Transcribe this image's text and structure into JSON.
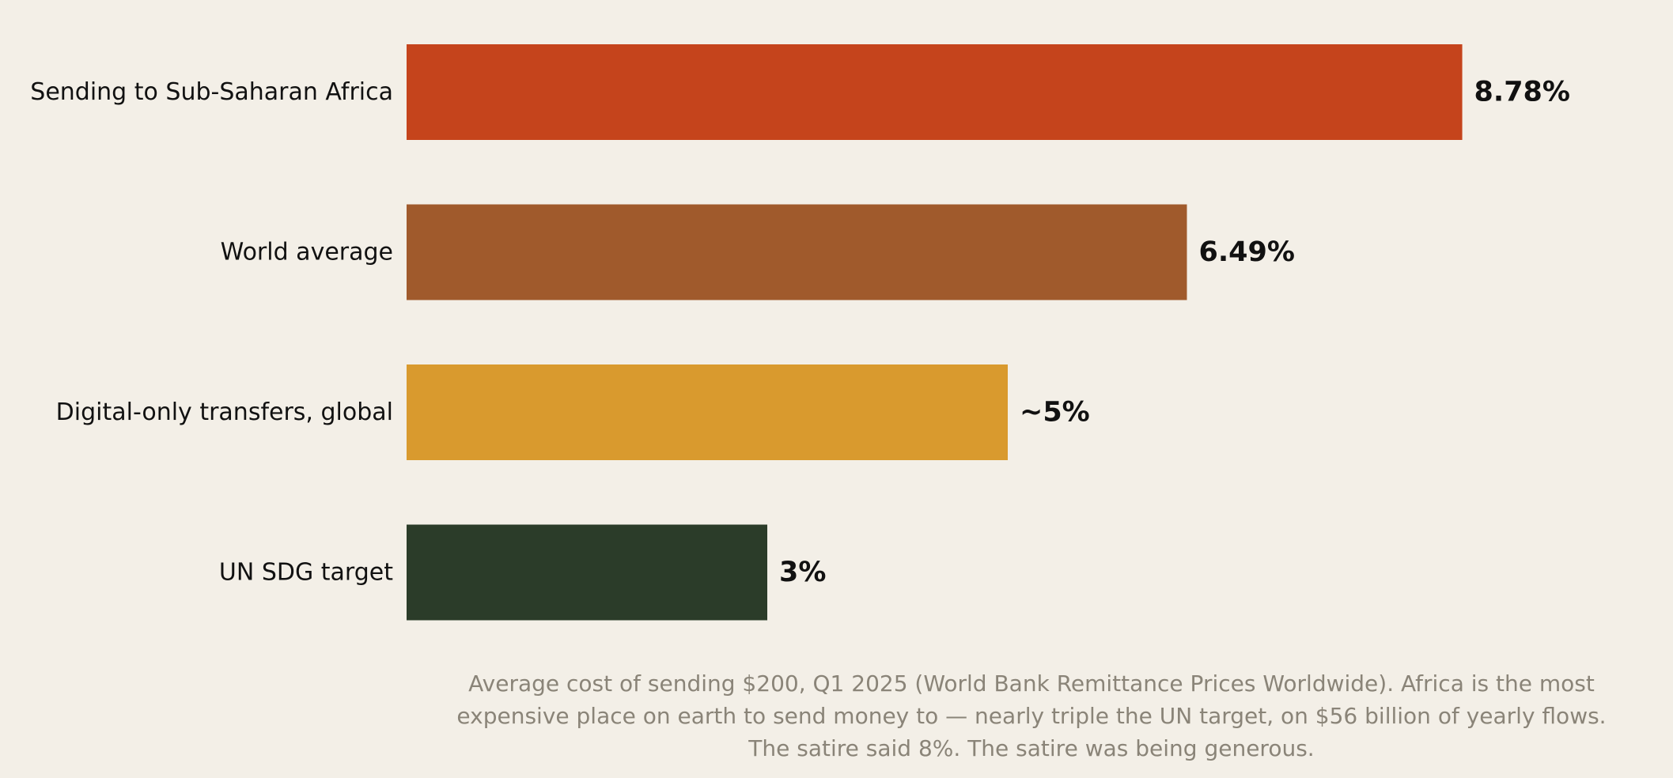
{
  "chart_data": {
    "type": "bar",
    "orientation": "horizontal",
    "categories": [
      "Sending to Sub-Saharan Africa",
      "World average",
      "Digital-only transfers, global",
      "UN SDG target"
    ],
    "values": [
      8.78,
      6.49,
      5,
      3
    ],
    "value_labels": [
      "8.78%",
      "6.49%",
      "~5%",
      "3%"
    ],
    "colors": [
      "#c5441c",
      "#a05a2c",
      "#d99a2e",
      "#2b3c29"
    ],
    "xlim": [
      0,
      9.5
    ],
    "grid": false,
    "legend": "none",
    "caption_lines": [
      "Average cost of sending $200, Q1 2025 (World Bank Remittance Prices Worldwide). Africa is the most",
      "expensive place on earth to send money to — nearly triple the UN target, on $56 billion of yearly flows.",
      "The satire said 8%. The satire was being generous."
    ]
  }
}
